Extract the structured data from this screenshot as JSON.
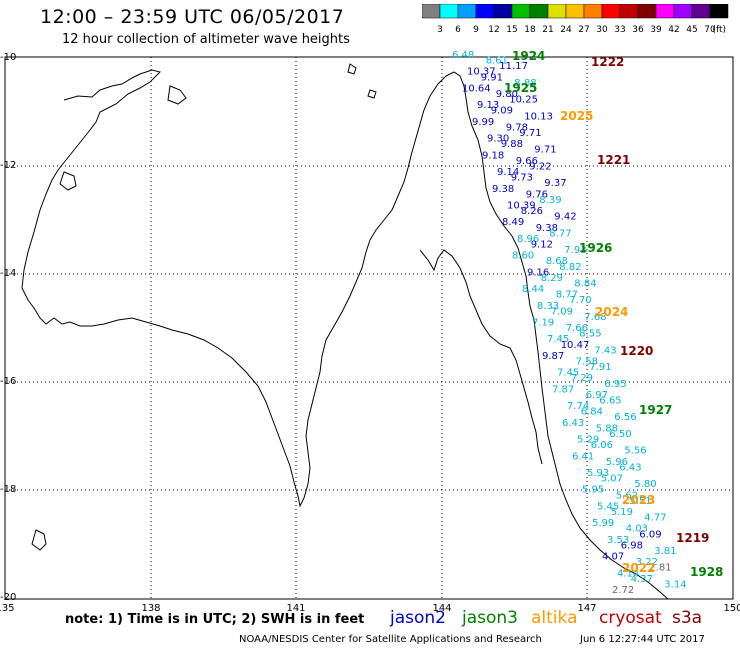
{
  "header": {
    "title": "12:00 – 23:59 UTC 06/05/2017",
    "subtitle": "12 hour collection of altimeter wave heights"
  },
  "colorbar": {
    "colors": [
      "#808080",
      "#00ffff",
      "#00a0ff",
      "#0000ff",
      "#0000a0",
      "#00c000",
      "#008000",
      "#e0e000",
      "#ffc000",
      "#ff8000",
      "#ff0000",
      "#c00000",
      "#800000",
      "#ff00ff",
      "#a000ff",
      "#600090",
      "#000000"
    ],
    "labels": [
      "3",
      "6",
      "9",
      "12",
      "15",
      "18",
      "21",
      "24",
      "27",
      "30",
      "33",
      "36",
      "39",
      "42",
      "45",
      "70"
    ],
    "unit": "(ft)"
  },
  "axes": {
    "lon_ticks": [
      "135",
      "138",
      "141",
      "144",
      "147",
      "150"
    ],
    "lat_ticks": [
      "-10",
      "-12",
      "-14",
      "-16",
      "-18",
      "-20"
    ]
  },
  "colors": {
    "jason2": "#0000c8",
    "jason3": "#008000",
    "altika": "#ff9900",
    "cryosat": "#c00000",
    "s3a": "#800000",
    "cyan": "#00b4d8",
    "gray": "#666666"
  },
  "satellites": [
    "jason2",
    "jason3",
    "altika",
    "cryosat",
    "s3a"
  ],
  "passes": [
    {
      "label": "1924",
      "sat": "jason3"
    },
    {
      "label": "1925",
      "sat": "jason3"
    },
    {
      "label": "1926",
      "sat": "jason3"
    },
    {
      "label": "1927",
      "sat": "jason3"
    },
    {
      "label": "1928",
      "sat": "jason3"
    },
    {
      "label": "2025",
      "sat": "altika"
    },
    {
      "label": "2024",
      "sat": "altika"
    },
    {
      "label": "2023",
      "sat": "altika"
    },
    {
      "label": "2022",
      "sat": "altika"
    },
    {
      "label": "1222",
      "sat": "s3a"
    },
    {
      "label": "1221",
      "sat": "s3a"
    },
    {
      "label": "1220",
      "sat": "s3a"
    },
    {
      "label": "1219",
      "sat": "s3a"
    }
  ],
  "readings": [
    {
      "v": "6.48",
      "c": "cyan"
    },
    {
      "v": "8.61",
      "c": "cyan"
    },
    {
      "v": "11.17",
      "c": "jason2"
    },
    {
      "v": "10.37",
      "c": "jason2"
    },
    {
      "v": "9.91",
      "c": "jason2"
    },
    {
      "v": "8.88",
      "c": "cyan"
    },
    {
      "v": "10.64",
      "c": "jason2"
    },
    {
      "v": "9.80",
      "c": "jason2"
    },
    {
      "v": "10.25",
      "c": "jason2"
    },
    {
      "v": "9.13",
      "c": "jason2"
    },
    {
      "v": "9.09",
      "c": "jason2"
    },
    {
      "v": "10.13",
      "c": "jason2"
    },
    {
      "v": "9.99",
      "c": "jason2"
    },
    {
      "v": "9.78",
      "c": "jason2"
    },
    {
      "v": "9.71",
      "c": "jason2"
    },
    {
      "v": "9.30",
      "c": "jason2"
    },
    {
      "v": "9.88",
      "c": "jason2"
    },
    {
      "v": "9.71",
      "c": "jason2"
    },
    {
      "v": "9.18",
      "c": "jason2"
    },
    {
      "v": "9.66",
      "c": "jason2"
    },
    {
      "v": "9.22",
      "c": "jason2"
    },
    {
      "v": "9.14",
      "c": "jason2"
    },
    {
      "v": "9.73",
      "c": "jason2"
    },
    {
      "v": "9.37",
      "c": "jason2"
    },
    {
      "v": "9.38",
      "c": "jason2"
    },
    {
      "v": "9.76",
      "c": "jason2"
    },
    {
      "v": "8.39",
      "c": "cyan"
    },
    {
      "v": "10.39",
      "c": "jason2"
    },
    {
      "v": "8.26",
      "c": "jason2"
    },
    {
      "v": "9.42",
      "c": "jason2"
    },
    {
      "v": "8.49",
      "c": "jason2"
    },
    {
      "v": "9.38",
      "c": "jason2"
    },
    {
      "v": "8.77",
      "c": "cyan"
    },
    {
      "v": "8.96",
      "c": "cyan"
    },
    {
      "v": "9.12",
      "c": "jason2"
    },
    {
      "v": "7.93",
      "c": "cyan"
    },
    {
      "v": "8.60",
      "c": "cyan"
    },
    {
      "v": "8.68",
      "c": "cyan"
    },
    {
      "v": "8.82",
      "c": "cyan"
    },
    {
      "v": "9.16",
      "c": "jason2"
    },
    {
      "v": "8.29",
      "c": "cyan"
    },
    {
      "v": "8.84",
      "c": "cyan"
    },
    {
      "v": "8.44",
      "c": "cyan"
    },
    {
      "v": "8.77",
      "c": "cyan"
    },
    {
      "v": "7.70",
      "c": "cyan"
    },
    {
      "v": "8.33",
      "c": "cyan"
    },
    {
      "v": "7.09",
      "c": "cyan"
    },
    {
      "v": "7.68",
      "c": "cyan"
    },
    {
      "v": "7.19",
      "c": "cyan"
    },
    {
      "v": "7.66",
      "c": "cyan"
    },
    {
      "v": "8.55",
      "c": "cyan"
    },
    {
      "v": "7.45",
      "c": "cyan"
    },
    {
      "v": "10.47",
      "c": "jason2"
    },
    {
      "v": "7.43",
      "c": "cyan"
    },
    {
      "v": "9.87",
      "c": "jason2"
    },
    {
      "v": "7.58",
      "c": "cyan"
    },
    {
      "v": "7.91",
      "c": "cyan"
    },
    {
      "v": "7.45",
      "c": "cyan"
    },
    {
      "v": "7.29",
      "c": "cyan"
    },
    {
      "v": "6.95",
      "c": "cyan"
    },
    {
      "v": "7.87",
      "c": "cyan"
    },
    {
      "v": "6.97",
      "c": "cyan"
    },
    {
      "v": "6.65",
      "c": "cyan"
    },
    {
      "v": "7.74",
      "c": "cyan"
    },
    {
      "v": "6.84",
      "c": "cyan"
    },
    {
      "v": "6.56",
      "c": "cyan"
    },
    {
      "v": "6.43",
      "c": "cyan"
    },
    {
      "v": "5.88",
      "c": "cyan"
    },
    {
      "v": "6.50",
      "c": "cyan"
    },
    {
      "v": "5.29",
      "c": "cyan"
    },
    {
      "v": "6.06",
      "c": "cyan"
    },
    {
      "v": "5.56",
      "c": "cyan"
    },
    {
      "v": "6.41",
      "c": "cyan"
    },
    {
      "v": "5.96",
      "c": "cyan"
    },
    {
      "v": "6.43",
      "c": "cyan"
    },
    {
      "v": "5.93",
      "c": "cyan"
    },
    {
      "v": "5.07",
      "c": "cyan"
    },
    {
      "v": "5.80",
      "c": "cyan"
    },
    {
      "v": "5.95",
      "c": "cyan"
    },
    {
      "v": "5.62",
      "c": "cyan"
    },
    {
      "v": "5.51",
      "c": "cyan"
    },
    {
      "v": "5.45",
      "c": "cyan"
    },
    {
      "v": "5.19",
      "c": "cyan"
    },
    {
      "v": "4.77",
      "c": "cyan"
    },
    {
      "v": "5.99",
      "c": "cyan"
    },
    {
      "v": "4.03",
      "c": "cyan"
    },
    {
      "v": "6.09",
      "c": "jason2"
    },
    {
      "v": "3.53",
      "c": "cyan"
    },
    {
      "v": "6.98",
      "c": "jason2"
    },
    {
      "v": "3.81",
      "c": "cyan"
    },
    {
      "v": "4.07",
      "c": "jason2"
    },
    {
      "v": "3.22",
      "c": "cyan"
    },
    {
      "v": "2.81",
      "c": "gray"
    },
    {
      "v": "4.14",
      "c": "cyan"
    },
    {
      "v": "4.37",
      "c": "cyan"
    },
    {
      "v": "3.14",
      "c": "cyan"
    },
    {
      "v": "2.72",
      "c": "gray"
    }
  ],
  "footer": {
    "note": "note:  1) Time is in UTC;  2) SWH is in feet",
    "legend": [
      "jason2",
      "jason3",
      "altika",
      "cryosat",
      "s3a"
    ],
    "credit": "NOAA/NESDIS Center for Satellite Applications and Research",
    "timestamp": "Jun  6 12:27:44 UTC 2017"
  }
}
